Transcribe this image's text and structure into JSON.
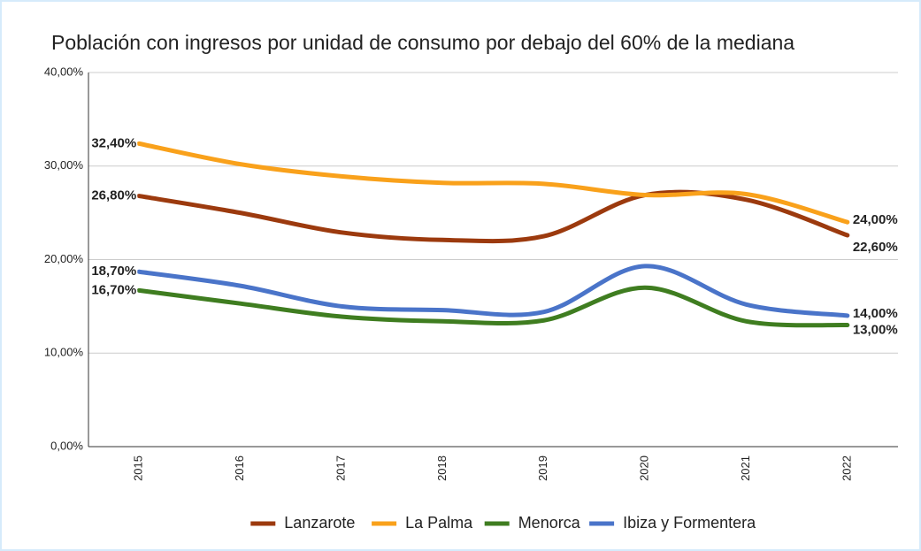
{
  "chart_data": {
    "type": "line",
    "title": "Población con ingresos por unidad de consumo por debajo del 60% de la mediana",
    "categories": [
      "2015",
      "2016",
      "2017",
      "2018",
      "2019",
      "2020",
      "2021",
      "2022"
    ],
    "series": [
      {
        "name": "Lanzarote",
        "color": "#9c3a0e",
        "values": [
          26.8,
          25.0,
          22.9,
          22.1,
          22.5,
          26.9,
          26.4,
          22.6
        ],
        "value_labels": [
          "26,80%",
          null,
          null,
          null,
          null,
          null,
          null,
          "22,60%"
        ]
      },
      {
        "name": "La Palma",
        "color": "#f9a11b",
        "values": [
          32.4,
          30.2,
          28.9,
          28.2,
          28.1,
          26.9,
          27.0,
          24.0
        ],
        "value_labels": [
          "32,40%",
          null,
          null,
          null,
          null,
          null,
          null,
          "24,00%"
        ]
      },
      {
        "name": "Menorca",
        "color": "#3f7d20",
        "values": [
          16.7,
          15.3,
          13.9,
          13.4,
          13.5,
          17.0,
          13.4,
          13.0
        ],
        "value_labels": [
          "16,70%",
          null,
          null,
          null,
          null,
          null,
          null,
          "13,00%"
        ]
      },
      {
        "name": "Ibiza y Formentera",
        "color": "#4a74c9",
        "values": [
          18.7,
          17.2,
          15.0,
          14.6,
          14.4,
          19.3,
          15.2,
          14.0
        ],
        "value_labels": [
          "18,70%",
          null,
          null,
          null,
          null,
          null,
          null,
          "14,00%"
        ]
      }
    ],
    "ylim": [
      0,
      40
    ],
    "yticks": [
      {
        "value": 0,
        "label": "0,00%"
      },
      {
        "value": 10,
        "label": "10,00%"
      },
      {
        "value": 20,
        "label": "20,00%"
      },
      {
        "value": 30,
        "label": "30,00%"
      },
      {
        "value": 40,
        "label": "40,00%"
      }
    ],
    "grid": true,
    "legend": "bottom"
  }
}
